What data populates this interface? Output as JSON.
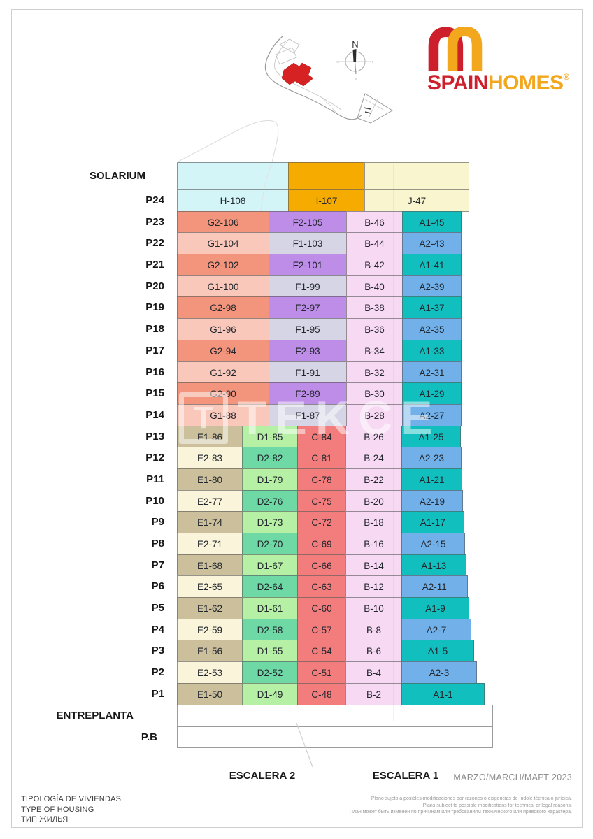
{
  "brand": {
    "spain": "SPAIN",
    "homes": "HOMES",
    "reg": "®",
    "color_red": "#ce1f2c",
    "color_orange": "#f2a71d"
  },
  "compass": {
    "north": "N"
  },
  "watermark": {
    "box_glyph": "T",
    "text": "TEKCE"
  },
  "type_colors": {
    "H": "#d4f5f7",
    "I": "#f6ab00",
    "J": "#f9f6cf",
    "G1": "#f9c8ba",
    "G2": "#f3957c",
    "F1": "#d5d5e5",
    "F2": "#bd8de8",
    "B": "#f7d9f4",
    "A1": "#11bfbf",
    "A2": "#72b0e9",
    "E1": "#cbbf9c",
    "E2": "#f9f4da",
    "D1": "#b5f0a5",
    "D2": "#6fd9a5",
    "C": "#f37d7d",
    "EMPTY": "#ffffff"
  },
  "table": {
    "rows": [
      {
        "id": "SOLARIUM",
        "kind": "solarium",
        "label": "SOLARIUM",
        "cells": [
          {
            "t": "H",
            "label": ""
          },
          {
            "t": "I",
            "label": ""
          },
          {
            "t": "J",
            "label": ""
          }
        ]
      },
      {
        "id": "P24",
        "kind": "floor",
        "label": "P24",
        "cells": [
          {
            "t": "H",
            "label": "H-108"
          },
          {
            "t": "I",
            "label": "I-107"
          },
          {
            "t": "J",
            "label": "J-47"
          }
        ]
      },
      {
        "id": "P23",
        "kind": "floor",
        "label": "P23",
        "cells": [
          {
            "t": "G2",
            "label": "G2-106"
          },
          {
            "t": "F2",
            "label": "F2-105"
          },
          {
            "t": "B",
            "label": "B-46"
          },
          {
            "t": "A1",
            "label": "A1-45"
          }
        ]
      },
      {
        "id": "P22",
        "kind": "floor",
        "label": "P22",
        "cells": [
          {
            "t": "G1",
            "label": "G1-104"
          },
          {
            "t": "F1",
            "label": "F1-103"
          },
          {
            "t": "B",
            "label": "B-44"
          },
          {
            "t": "A2",
            "label": "A2-43"
          }
        ]
      },
      {
        "id": "P21",
        "kind": "floor",
        "label": "P21",
        "cells": [
          {
            "t": "G2",
            "label": "G2-102"
          },
          {
            "t": "F2",
            "label": "F2-101"
          },
          {
            "t": "B",
            "label": "B-42"
          },
          {
            "t": "A1",
            "label": "A1-41"
          }
        ]
      },
      {
        "id": "P20",
        "kind": "floor",
        "label": "P20",
        "cells": [
          {
            "t": "G1",
            "label": "G1-100"
          },
          {
            "t": "F1",
            "label": "F1-99"
          },
          {
            "t": "B",
            "label": "B-40"
          },
          {
            "t": "A2",
            "label": "A2-39"
          }
        ]
      },
      {
        "id": "P19",
        "kind": "floor",
        "label": "P19",
        "cells": [
          {
            "t": "G2",
            "label": "G2-98"
          },
          {
            "t": "F2",
            "label": "F2-97"
          },
          {
            "t": "B",
            "label": "B-38"
          },
          {
            "t": "A1",
            "label": "A1-37"
          }
        ]
      },
      {
        "id": "P18",
        "kind": "floor",
        "label": "P18",
        "cells": [
          {
            "t": "G1",
            "label": "G1-96"
          },
          {
            "t": "F1",
            "label": "F1-95"
          },
          {
            "t": "B",
            "label": "B-36"
          },
          {
            "t": "A2",
            "label": "A2-35"
          }
        ]
      },
      {
        "id": "P17",
        "kind": "floor",
        "label": "P17",
        "cells": [
          {
            "t": "G2",
            "label": "G2-94"
          },
          {
            "t": "F2",
            "label": "F2-93"
          },
          {
            "t": "B",
            "label": "B-34"
          },
          {
            "t": "A1",
            "label": "A1-33"
          }
        ]
      },
      {
        "id": "P16",
        "kind": "floor",
        "label": "P16",
        "cells": [
          {
            "t": "G1",
            "label": "G1-92"
          },
          {
            "t": "F1",
            "label": "F1-91"
          },
          {
            "t": "B",
            "label": "B-32"
          },
          {
            "t": "A2",
            "label": "A2-31"
          }
        ]
      },
      {
        "id": "P15",
        "kind": "floor",
        "label": "P15",
        "cells": [
          {
            "t": "G2",
            "label": "G2-90"
          },
          {
            "t": "F2",
            "label": "F2-89"
          },
          {
            "t": "B",
            "label": "B-30"
          },
          {
            "t": "A1",
            "label": "A1-29"
          }
        ]
      },
      {
        "id": "P14",
        "kind": "floor",
        "label": "P14",
        "cells": [
          {
            "t": "G1",
            "label": "G1-88"
          },
          {
            "t": "F1",
            "label": "F1-87"
          },
          {
            "t": "B",
            "label": "B-28"
          },
          {
            "t": "A2",
            "label": "A2-27"
          }
        ]
      },
      {
        "id": "P13",
        "kind": "floor",
        "label": "P13",
        "cells": [
          {
            "t": "E1",
            "label": "E1-86"
          },
          {
            "t": "D1",
            "label": "D1-85"
          },
          {
            "t": "C",
            "label": "C-84"
          },
          {
            "t": "B",
            "label": "B-26"
          },
          {
            "t": "A1",
            "label": "A1-25"
          }
        ]
      },
      {
        "id": "P12",
        "kind": "floor",
        "label": "P12",
        "cells": [
          {
            "t": "E2",
            "label": "E2-83"
          },
          {
            "t": "D2",
            "label": "D2-82"
          },
          {
            "t": "C",
            "label": "C-81"
          },
          {
            "t": "B",
            "label": "B-24"
          },
          {
            "t": "A2",
            "label": "A2-23"
          }
        ]
      },
      {
        "id": "P11",
        "kind": "floor",
        "label": "P11",
        "cells": [
          {
            "t": "E1",
            "label": "E1-80"
          },
          {
            "t": "D1",
            "label": "D1-79"
          },
          {
            "t": "C",
            "label": "C-78"
          },
          {
            "t": "B",
            "label": "B-22"
          },
          {
            "t": "A1",
            "label": "A1-21"
          }
        ]
      },
      {
        "id": "P10",
        "kind": "floor",
        "label": "P10",
        "cells": [
          {
            "t": "E2",
            "label": "E2-77"
          },
          {
            "t": "D2",
            "label": "D2-76"
          },
          {
            "t": "C",
            "label": "C-75"
          },
          {
            "t": "B",
            "label": "B-20"
          },
          {
            "t": "A2",
            "label": "A2-19"
          }
        ]
      },
      {
        "id": "P9",
        "kind": "floor",
        "label": "P9",
        "cells": [
          {
            "t": "E1",
            "label": "E1-74"
          },
          {
            "t": "D1",
            "label": "D1-73"
          },
          {
            "t": "C",
            "label": "C-72"
          },
          {
            "t": "B",
            "label": "B-18"
          },
          {
            "t": "A1",
            "label": "A1-17"
          }
        ]
      },
      {
        "id": "P8",
        "kind": "floor",
        "label": "P8",
        "cells": [
          {
            "t": "E2",
            "label": "E2-71"
          },
          {
            "t": "D2",
            "label": "D2-70"
          },
          {
            "t": "C",
            "label": "C-69"
          },
          {
            "t": "B",
            "label": "B-16"
          },
          {
            "t": "A2",
            "label": "A2-15"
          }
        ]
      },
      {
        "id": "P7",
        "kind": "floor",
        "label": "P7",
        "cells": [
          {
            "t": "E1",
            "label": "E1-68"
          },
          {
            "t": "D1",
            "label": "D1-67"
          },
          {
            "t": "C",
            "label": "C-66"
          },
          {
            "t": "B",
            "label": "B-14"
          },
          {
            "t": "A1",
            "label": "A1-13"
          }
        ]
      },
      {
        "id": "P6",
        "kind": "floor",
        "label": "P6",
        "cells": [
          {
            "t": "E2",
            "label": "E2-65"
          },
          {
            "t": "D2",
            "label": "D2-64"
          },
          {
            "t": "C",
            "label": "C-63"
          },
          {
            "t": "B",
            "label": "B-12"
          },
          {
            "t": "A2",
            "label": "A2-11"
          }
        ]
      },
      {
        "id": "P5",
        "kind": "floor",
        "label": "P5",
        "cells": [
          {
            "t": "E1",
            "label": "E1-62"
          },
          {
            "t": "D1",
            "label": "D1-61"
          },
          {
            "t": "C",
            "label": "C-60"
          },
          {
            "t": "B",
            "label": "B-10"
          },
          {
            "t": "A1",
            "label": "A1-9"
          }
        ]
      },
      {
        "id": "P4",
        "kind": "floor",
        "label": "P4",
        "cells": [
          {
            "t": "E2",
            "label": "E2-59"
          },
          {
            "t": "D2",
            "label": "D2-58"
          },
          {
            "t": "C",
            "label": "C-57"
          },
          {
            "t": "B",
            "label": "B-8"
          },
          {
            "t": "A2",
            "label": "A2-7"
          }
        ]
      },
      {
        "id": "P3",
        "kind": "floor",
        "label": "P3",
        "cells": [
          {
            "t": "E1",
            "label": "E1-56"
          },
          {
            "t": "D1",
            "label": "D1-55"
          },
          {
            "t": "C",
            "label": "C-54"
          },
          {
            "t": "B",
            "label": "B-6"
          },
          {
            "t": "A1",
            "label": "A1-5"
          }
        ]
      },
      {
        "id": "P2",
        "kind": "floor",
        "label": "P2",
        "cells": [
          {
            "t": "E2",
            "label": "E2-53"
          },
          {
            "t": "D2",
            "label": "D2-52"
          },
          {
            "t": "C",
            "label": "C-51"
          },
          {
            "t": "B",
            "label": "B-4"
          },
          {
            "t": "A2",
            "label": "A2-3"
          }
        ]
      },
      {
        "id": "P1",
        "kind": "floor",
        "label": "P1",
        "cells": [
          {
            "t": "E1",
            "label": "E1-50"
          },
          {
            "t": "D1",
            "label": "D1-49"
          },
          {
            "t": "C",
            "label": "C-48"
          },
          {
            "t": "B",
            "label": "B-2"
          },
          {
            "t": "A1",
            "label": "A1-1"
          }
        ]
      },
      {
        "id": "ENTREPLANTA",
        "kind": "entreplanta",
        "label": "ENTREPLANTA",
        "cells": [
          {
            "t": "EMPTY",
            "label": ""
          }
        ]
      },
      {
        "id": "P.B",
        "kind": "pb",
        "label": "P.B",
        "cells": [
          {
            "t": "EMPTY",
            "label": ""
          }
        ]
      }
    ]
  },
  "stairs": {
    "escalera2": "ESCALERA 2",
    "escalera1": "ESCALERA 1"
  },
  "footer": {
    "date": "MARZO/MARCH/МАРТ 2023",
    "left_lines": [
      "TIPOLOGÍA DE VIVIENDAS",
      "TYPE OF HOUSING",
      "ТИП ЖИЛЬЯ"
    ],
    "right_lines": [
      "Plano sujeto a posibles modificaciones por razones o exigencias de índole técnica o jurídica.",
      "Plans subject to possible modifications for technical or legal reasons.",
      "План может быть изменен по причинам или требованиям технического или правового характера."
    ]
  }
}
